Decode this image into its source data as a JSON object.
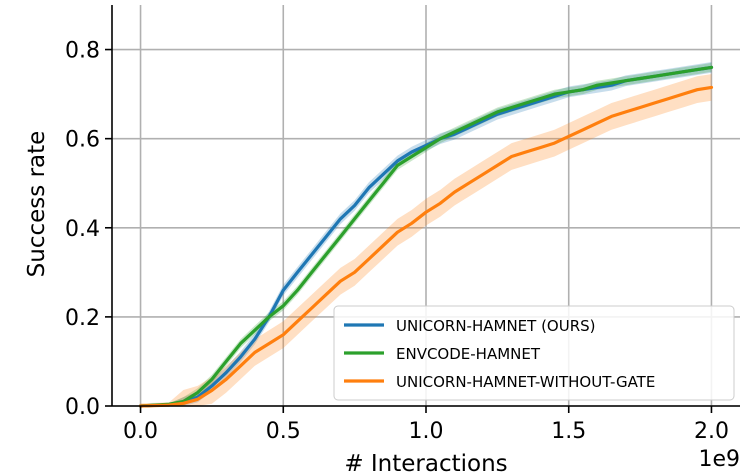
{
  "chart_data": {
    "type": "line",
    "title": "",
    "xlabel": "# Interactions",
    "ylabel": "Success rate",
    "x_offset_label": "1e9",
    "xlim": [
      -0.1,
      2.1
    ],
    "ylim": [
      0.0,
      0.9
    ],
    "xticks": [
      "0.0",
      "0.5",
      "1.0",
      "1.5",
      "2.0"
    ],
    "yticks": [
      "0.0",
      "0.2",
      "0.4",
      "0.6",
      "0.8"
    ],
    "grid": true,
    "legend_position": "lower-right",
    "x": [
      0.0,
      0.1,
      0.15,
      0.2,
      0.25,
      0.3,
      0.35,
      0.4,
      0.45,
      0.5,
      0.55,
      0.6,
      0.65,
      0.7,
      0.75,
      0.8,
      0.85,
      0.9,
      0.95,
      1.0,
      1.05,
      1.1,
      1.15,
      1.2,
      1.25,
      1.3,
      1.35,
      1.4,
      1.45,
      1.5,
      1.55,
      1.6,
      1.65,
      1.7,
      1.75,
      1.8,
      1.85,
      1.9,
      1.95,
      2.0
    ],
    "series": [
      {
        "name": "UNICORN-HAMNET (OURS)",
        "color": "#1f77b4",
        "values": [
          0.0,
          0.003,
          0.008,
          0.02,
          0.045,
          0.075,
          0.11,
          0.15,
          0.2,
          0.26,
          0.3,
          0.34,
          0.38,
          0.42,
          0.45,
          0.49,
          0.52,
          0.55,
          0.57,
          0.585,
          0.6,
          0.61,
          0.625,
          0.64,
          0.655,
          0.665,
          0.675,
          0.685,
          0.695,
          0.705,
          0.71,
          0.715,
          0.72,
          0.73,
          0.735,
          0.74,
          0.745,
          0.75,
          0.755,
          0.76
        ],
        "band": 0.012
      },
      {
        "name": "ENVCODE-HAMNET",
        "color": "#2ca02c",
        "values": [
          0.0,
          0.004,
          0.01,
          0.03,
          0.06,
          0.1,
          0.14,
          0.17,
          0.2,
          0.225,
          0.26,
          0.3,
          0.34,
          0.38,
          0.42,
          0.46,
          0.5,
          0.54,
          0.56,
          0.58,
          0.6,
          0.615,
          0.63,
          0.645,
          0.66,
          0.67,
          0.68,
          0.69,
          0.7,
          0.705,
          0.71,
          0.72,
          0.725,
          0.73,
          0.735,
          0.74,
          0.745,
          0.75,
          0.755,
          0.76
        ],
        "band": 0.01
      },
      {
        "name": "UNICORN-HAMNET-WITHOUT-GATE",
        "color": "#ff7f0e",
        "values": [
          0.0,
          0.002,
          0.006,
          0.015,
          0.035,
          0.06,
          0.09,
          0.12,
          0.14,
          0.16,
          0.19,
          0.22,
          0.25,
          0.28,
          0.3,
          0.33,
          0.36,
          0.39,
          0.41,
          0.435,
          0.455,
          0.48,
          0.5,
          0.52,
          0.54,
          0.56,
          0.57,
          0.58,
          0.59,
          0.605,
          0.62,
          0.635,
          0.65,
          0.66,
          0.67,
          0.68,
          0.69,
          0.7,
          0.71,
          0.715
        ],
        "band": 0.03
      }
    ]
  }
}
